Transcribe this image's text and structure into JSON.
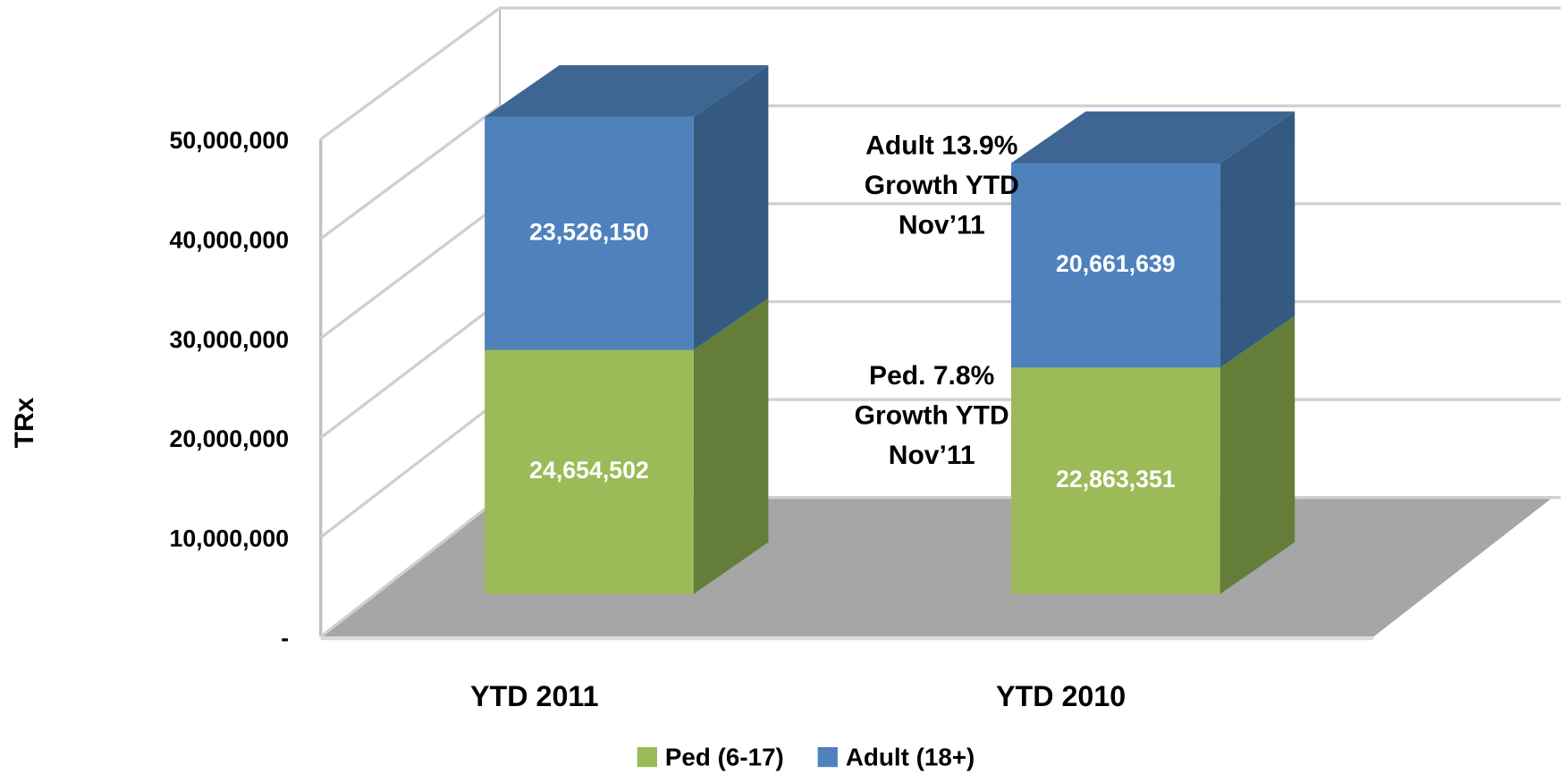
{
  "chart_data": {
    "type": "bar3d_stacked",
    "y_label": "TRx",
    "categories": [
      "YTD 2011",
      "YTD 2010"
    ],
    "series": [
      {
        "name": "Ped (6-17)",
        "color": "#9bbb59",
        "side_color": "#647d39",
        "values": [
          24654502,
          22863351
        ],
        "value_labels": [
          "24,654,502",
          "22,863,351"
        ]
      },
      {
        "name": "Adult (18+)",
        "color": "#4f81bd",
        "side_color": "#355a82",
        "top_color": "#3f6592",
        "values": [
          23526150,
          20661639
        ],
        "value_labels": [
          "23,526,150",
          "20,661,639"
        ]
      }
    ],
    "ylim": [
      0,
      50000000
    ],
    "yticks": [
      {
        "value": 0,
        "label": "-"
      },
      {
        "value": 10000000,
        "label": "10,000,000"
      },
      {
        "value": 20000000,
        "label": "20,000,000"
      },
      {
        "value": 30000000,
        "label": "30,000,000"
      },
      {
        "value": 40000000,
        "label": "40,000,000"
      },
      {
        "value": 50000000,
        "label": "50,000,000"
      }
    ],
    "grid": true,
    "floor_color": "#a6a6a6",
    "legend": "bottom",
    "annotations": [
      {
        "lines": [
          "Adult 13.9%",
          "Growth YTD",
          "Nov’11"
        ]
      },
      {
        "lines": [
          "Ped. 7.8%",
          "Growth YTD",
          "Nov’11"
        ]
      }
    ]
  }
}
